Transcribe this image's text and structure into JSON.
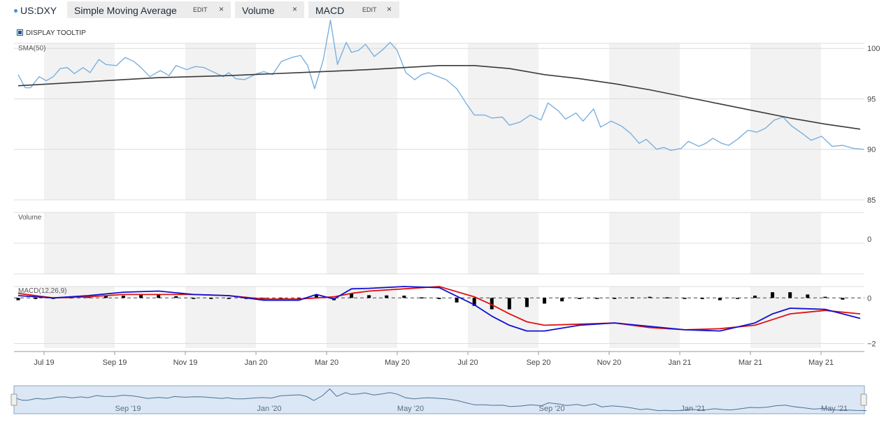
{
  "toolbar": {
    "symbol": "US:DXY",
    "studies": [
      {
        "name": "Simple Moving Average",
        "edit": "EDIT",
        "close": "×"
      },
      {
        "name": "Volume",
        "close": "×"
      },
      {
        "name": "MACD",
        "edit": "EDIT",
        "close": "×"
      }
    ]
  },
  "tooltip_toggle": {
    "label": "DISPLAY TOOLTIP",
    "checked": true
  },
  "colors": {
    "price": "#7ab0e0",
    "sma": "#3a3a3a",
    "macd": "#1010d0",
    "signal": "#e01010",
    "histogram": "#000000",
    "band": "#f2f2f2",
    "grid": "#dcdcdc",
    "navigator": "#dbe7f5"
  },
  "chart_data": [
    {
      "type": "line",
      "pane": "price",
      "title": "SMA(50)",
      "x_labels": [
        "Jul 19",
        "Sep 19",
        "Nov 19",
        "Jan 20",
        "Mar 20",
        "May 20",
        "Jul 20",
        "Sep 20",
        "Nov 20",
        "Jan 21",
        "Mar 21",
        "May 21"
      ],
      "y_ticks": [
        85,
        90,
        95,
        100
      ],
      "ylim": [
        85,
        100.5
      ],
      "x_range": [
        0,
        24
      ],
      "series": [
        {
          "name": "US:DXY",
          "x": [
            0,
            0.2,
            0.35,
            0.6,
            0.8,
            1,
            1.2,
            1.4,
            1.6,
            1.85,
            2.05,
            2.3,
            2.5,
            2.8,
            3.05,
            3.3,
            3.5,
            3.75,
            4.05,
            4.3,
            4.5,
            4.8,
            5.05,
            5.3,
            5.6,
            5.85,
            6,
            6.2,
            6.45,
            6.8,
            7,
            7.25,
            7.5,
            7.8,
            8.05,
            8.25,
            8.45,
            8.7,
            8.9,
            9.1,
            9.35,
            9.5,
            9.7,
            9.9,
            10.15,
            10.4,
            10.6,
            10.8,
            11.05,
            11.3,
            11.5,
            11.7,
            11.9,
            12.2,
            12.5,
            12.8,
            13,
            13.3,
            13.5,
            13.8,
            14,
            14.3,
            14.6,
            14.9,
            15.1,
            15.4,
            15.6,
            15.9,
            16.1,
            16.4,
            16.6,
            16.9,
            17.2,
            17.45,
            17.7,
            17.9,
            18.2,
            18.4,
            18.6,
            18.9,
            19.1,
            19.4,
            19.6,
            19.8,
            20.05,
            20.25,
            20.5,
            20.8,
            21.05,
            21.3,
            21.55,
            21.8,
            22.05,
            22.3,
            22.6,
            22.9,
            23.2,
            23.5,
            23.8,
            24.1
          ],
          "values": [
            97.4,
            96.1,
            96.1,
            97.2,
            96.8,
            97.2,
            98.0,
            98.1,
            97.5,
            98.1,
            97.6,
            98.9,
            98.4,
            98.3,
            99.1,
            98.7,
            98.1,
            97.2,
            97.8,
            97.3,
            98.3,
            97.9,
            98.2,
            98.1,
            97.6,
            97.2,
            97.6,
            97.0,
            96.9,
            97.5,
            97.7,
            97.4,
            98.7,
            99.1,
            99.3,
            98.3,
            96.0,
            98.9,
            102.8,
            98.4,
            100.6,
            99.6,
            99.8,
            100.4,
            99.2,
            99.9,
            100.6,
            99.8,
            97.6,
            96.9,
            97.4,
            97.6,
            97.3,
            96.9,
            96.0,
            94.4,
            93.4,
            93.4,
            93.1,
            93.2,
            92.4,
            92.7,
            93.4,
            92.9,
            94.6,
            93.8,
            93.0,
            93.6,
            92.8,
            94.0,
            92.2,
            92.8,
            92.3,
            91.6,
            90.6,
            91.0,
            90.0,
            90.2,
            89.9,
            90.1,
            90.8,
            90.3,
            90.6,
            91.1,
            90.6,
            90.4,
            91.0,
            91.9,
            91.7,
            92.1,
            92.9,
            93.2,
            92.3,
            91.7,
            90.9,
            91.3,
            90.3,
            90.4,
            90.1,
            90.0
          ]
        },
        {
          "name": "SMA",
          "x": [
            0,
            2,
            4,
            6,
            8,
            10,
            11,
            12,
            13,
            14,
            15,
            16,
            17,
            18,
            19,
            20,
            21,
            22,
            23,
            24
          ],
          "values": [
            96.3,
            96.7,
            97.1,
            97.3,
            97.6,
            97.9,
            98.1,
            98.3,
            98.3,
            98.0,
            97.4,
            97.0,
            96.5,
            95.9,
            95.2,
            94.5,
            93.8,
            93.1,
            92.5,
            92.0
          ]
        }
      ]
    },
    {
      "type": "bar",
      "pane": "volume",
      "title": "Volume",
      "y_ticks": [
        0
      ]
    },
    {
      "type": "line",
      "pane": "macd",
      "title": "MACD(12,26,9)",
      "y_ticks": [
        0,
        -2
      ],
      "ylim": [
        -2.2,
        0.5
      ],
      "x_range": [
        0,
        24
      ],
      "series": [
        {
          "name": "MACD",
          "x": [
            0,
            1,
            2,
            3,
            4,
            5,
            6,
            7,
            8,
            8.5,
            9,
            9.5,
            10,
            11,
            12,
            13,
            13.5,
            14,
            14.5,
            15,
            16,
            17,
            18,
            19,
            20,
            21,
            21.5,
            22,
            23,
            24
          ],
          "values": [
            0.1,
            0,
            0.1,
            0.25,
            0.3,
            0.15,
            0.1,
            -0.1,
            -0.1,
            0.15,
            -0.05,
            0.4,
            0.42,
            0.5,
            0.45,
            -0.3,
            -0.8,
            -1.2,
            -1.45,
            -1.45,
            -1.2,
            -1.1,
            -1.25,
            -1.4,
            -1.45,
            -1.1,
            -0.7,
            -0.45,
            -0.5,
            -0.9
          ]
        },
        {
          "name": "Signal",
          "x": [
            0,
            1,
            2,
            3,
            4,
            5,
            6,
            7,
            8,
            8.5,
            9,
            9.5,
            10,
            11,
            12,
            13,
            13.5,
            14,
            14.5,
            15,
            16,
            17,
            18,
            19,
            20,
            21,
            21.5,
            22,
            23,
            24
          ],
          "values": [
            0.2,
            0,
            0.05,
            0.15,
            0.15,
            0.15,
            0.1,
            -0.05,
            -0.05,
            0,
            0.05,
            0.2,
            0.3,
            0.4,
            0.5,
            0.05,
            -0.3,
            -0.7,
            -1.05,
            -1.2,
            -1.15,
            -1.1,
            -1.3,
            -1.4,
            -1.35,
            -1.2,
            -0.95,
            -0.7,
            -0.55,
            -0.7
          ]
        },
        {
          "name": "Histogram",
          "x": [
            0,
            1,
            2,
            3,
            4,
            5,
            6,
            7,
            8,
            8.5,
            9,
            9.5,
            10,
            11,
            12,
            13,
            13.5,
            14,
            14.5,
            15,
            16,
            17,
            18,
            19,
            20,
            21,
            21.5,
            22,
            23,
            24
          ],
          "values": [
            -0.1,
            0,
            0.05,
            0.1,
            0.15,
            0,
            0,
            -0.05,
            -0.05,
            0.15,
            -0.1,
            0.2,
            0.12,
            0.1,
            -0.05,
            -0.35,
            -0.5,
            -0.5,
            -0.4,
            -0.25,
            -0.05,
            0,
            0.05,
            0,
            -0.1,
            0.1,
            0.25,
            0.25,
            0.05,
            -0.2
          ]
        }
      ]
    },
    {
      "type": "area",
      "pane": "navigator",
      "x_labels": [
        "Sep '19",
        "Jan '20",
        "May '20",
        "Sep '20",
        "Jan '21",
        "May '21"
      ]
    }
  ]
}
